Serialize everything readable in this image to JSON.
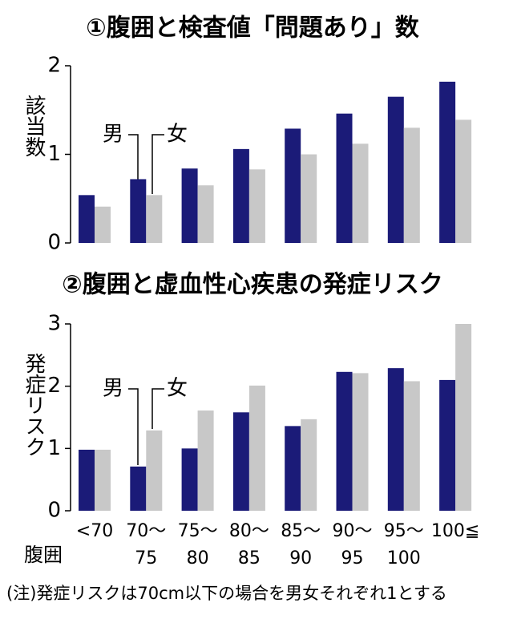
{
  "chart_data": [
    {
      "type": "bar",
      "title": "①腹囲と検査値「問題あり」数",
      "y_label": "該当数",
      "ylim": [
        0,
        2
      ],
      "yticks": [
        0,
        1,
        2
      ],
      "series": [
        {
          "name": "男",
          "color": "#1b1b78",
          "values": [
            0.54,
            0.72,
            0.84,
            1.06,
            1.29,
            1.46,
            1.65,
            1.82
          ]
        },
        {
          "name": "女",
          "color": "#c8c8c8",
          "values": [
            0.41,
            0.54,
            0.65,
            0.83,
            1.0,
            1.12,
            1.3,
            1.39
          ]
        }
      ]
    },
    {
      "type": "bar",
      "title": "②腹囲と虚血性心疾患の発症リスク",
      "y_label": "発症リスク",
      "x_label": "腹囲",
      "categories": [
        "<70",
        "70～\n75",
        "75～\n80",
        "80～\n85",
        "85～\n90",
        "90～\n95",
        "95～\n100",
        "100≦"
      ],
      "ylim": [
        0,
        3
      ],
      "yticks": [
        0,
        1,
        2,
        3
      ],
      "series": [
        {
          "name": "男",
          "color": "#1b1b78",
          "values": [
            0.98,
            0.71,
            1.0,
            1.58,
            1.36,
            2.23,
            2.29,
            2.1
          ]
        },
        {
          "name": "女",
          "color": "#c8c8c8",
          "values": [
            0.98,
            1.29,
            1.61,
            2.01,
            1.47,
            2.21,
            2.08,
            3.0
          ]
        }
      ],
      "note": "(注)発症リスクは70cm以下の場合を男女それぞれ1とする"
    }
  ]
}
